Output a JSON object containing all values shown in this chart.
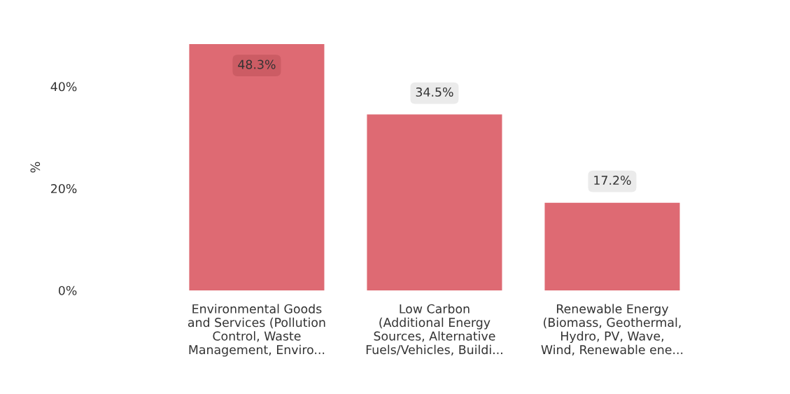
{
  "chart_data": {
    "type": "bar",
    "ylabel": "%",
    "categories": [
      "Environmental Goods\nand Services (Pollution\nControl, Waste\nManagement, Enviro...",
      "Low Carbon\n(Additional Energy\nSources, Alternative\nFuels/Vehicles, Buildi...",
      "Renewable Energy\n(Biomass, Geothermal,\nHydro, PV, Wave,\nWind, Renewable ene..."
    ],
    "values": [
      48.3,
      34.5,
      17.2
    ],
    "color": "#de6a73",
    "value_labels": [
      "48.3%",
      "34.5%",
      "17.2%"
    ],
    "ylim": [
      0,
      48.3
    ],
    "yticks": [
      {
        "value": 0,
        "label": "0%"
      },
      {
        "value": 20,
        "label": "20%"
      },
      {
        "value": 40,
        "label": "40%"
      }
    ],
    "grid": false,
    "legend": false
  }
}
